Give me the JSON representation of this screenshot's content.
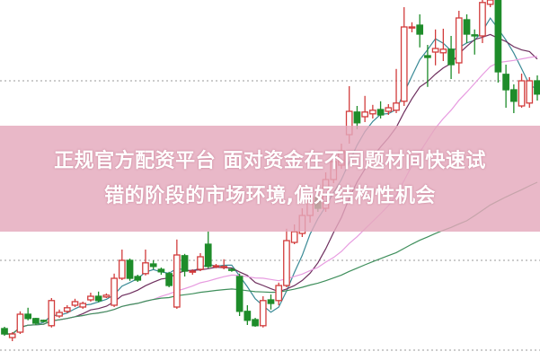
{
  "banner": {
    "line1": "正规官方配资平台 面对资金在不同题材间快速试",
    "line2": "错的阶段的市场环境,偏好结构性机会",
    "color": "#e4a8bc"
  },
  "chart_data": {
    "type": "candlestick",
    "title": "",
    "xlabel": "",
    "ylabel": "",
    "ylim": [
      0,
      100
    ],
    "grid": "dotted horizontal",
    "gridlines": [
      27.5,
      77.5,
      2.5
    ],
    "colors": {
      "up": "#d23c3c",
      "down": "#1e8c2a",
      "ma5": "#3a8a96",
      "ma10": "#6e2f5e",
      "ma20": "#e79be0",
      "ma60": "#3f8f5c",
      "grid": "#9a9a9a"
    },
    "moving_averages": [
      5,
      10,
      20,
      60
    ],
    "ohlc": [
      [
        8.5,
        9,
        6.5,
        7
      ],
      [
        6,
        7.5,
        5,
        7
      ],
      [
        7.5,
        13.3,
        7,
        12.5
      ],
      [
        12.5,
        14.3,
        10.8,
        11.3
      ],
      [
        11.3,
        11.5,
        9.5,
        10
      ],
      [
        10.8,
        11,
        10.2,
        10.5
      ],
      [
        9.3,
        17,
        8.8,
        16.3
      ],
      [
        12,
        13.8,
        11.5,
        13
      ],
      [
        13.3,
        15,
        12.8,
        14.3
      ],
      [
        15,
        16.8,
        14.5,
        16
      ],
      [
        14.5,
        16,
        14,
        15.5
      ],
      [
        16.5,
        18.5,
        16,
        17.5
      ],
      [
        17.5,
        18.8,
        15.8,
        16.3
      ],
      [
        17.3,
        18.3,
        17,
        17.8
      ],
      [
        15,
        23.8,
        14.5,
        22.5
      ],
      [
        22.5,
        30.5,
        22,
        27.5
      ],
      [
        27.5,
        28,
        21.8,
        22.5
      ],
      [
        23,
        23.5,
        21.5,
        22
      ],
      [
        23.8,
        30.5,
        23.3,
        26.8
      ],
      [
        26.5,
        27.5,
        25,
        25.8
      ],
      [
        25,
        25.5,
        23.5,
        24.3
      ],
      [
        23.8,
        24.3,
        20,
        20.5
      ],
      [
        14.5,
        33.3,
        14,
        29
      ],
      [
        28.8,
        29.3,
        23,
        24.5
      ],
      [
        24.3,
        25,
        23.5,
        24.5
      ],
      [
        25,
        29.5,
        24.5,
        28.5
      ],
      [
        32,
        35.5,
        25.3,
        25.8
      ],
      [
        25.8,
        26.5,
        25.3,
        26
      ],
      [
        25.5,
        27.8,
        25,
        25.8
      ],
      [
        25,
        25.3,
        24.3,
        24.8
      ],
      [
        23,
        23.8,
        12,
        13.3
      ],
      [
        13.3,
        15,
        9.5,
        10.8
      ],
      [
        11,
        11.5,
        9,
        9.3
      ],
      [
        9.3,
        17.5,
        8.8,
        16.3
      ],
      [
        16.5,
        18,
        13.8,
        15.5
      ],
      [
        16.3,
        21.3,
        15,
        20.5
      ],
      [
        20.5,
        36.3,
        20,
        33
      ],
      [
        32.5,
        37.5,
        32,
        35.5
      ],
      [
        35,
        42,
        34,
        40
      ],
      [
        40,
        46,
        38,
        45
      ],
      [
        45,
        47,
        41,
        42
      ],
      [
        42,
        52,
        41,
        50
      ],
      [
        50,
        57,
        49,
        55
      ],
      [
        54,
        60,
        53,
        58
      ],
      [
        62.5,
        76,
        60,
        69
      ],
      [
        68.8,
        70.5,
        64,
        65.8
      ],
      [
        67.5,
        73.3,
        66,
        68.8
      ],
      [
        68.3,
        70.8,
        67,
        69.3
      ],
      [
        69.5,
        71.8,
        67,
        68
      ],
      [
        69,
        71,
        68,
        70
      ],
      [
        69.3,
        80.8,
        68.5,
        71.3
      ],
      [
        71.8,
        98,
        70.5,
        92.5
      ],
      [
        92.5,
        93.8,
        91,
        92.5
      ],
      [
        93,
        96,
        86.8,
        90.5
      ],
      [
        84.5,
        87.5,
        75.8,
        84
      ],
      [
        85.5,
        91.8,
        81.8,
        86.5
      ],
      [
        85.3,
        92,
        83,
        86.3
      ],
      [
        86.3,
        90,
        78,
        82
      ],
      [
        82.5,
        97,
        79.5,
        95
      ],
      [
        94.5,
        96,
        88,
        90.5
      ],
      [
        90.3,
        91.8,
        84.8,
        90
      ],
      [
        90,
        100,
        88,
        99.3
      ],
      [
        98.8,
        100,
        98,
        100
      ],
      [
        100,
        100,
        77,
        80
      ],
      [
        79.3,
        82,
        70,
        75
      ],
      [
        75,
        76.5,
        68.5,
        71.8
      ],
      [
        70.5,
        79.5,
        70,
        77.5
      ],
      [
        71.3,
        78.5,
        70,
        77.5
      ],
      [
        77.5,
        79,
        72,
        73.8
      ]
    ]
  }
}
